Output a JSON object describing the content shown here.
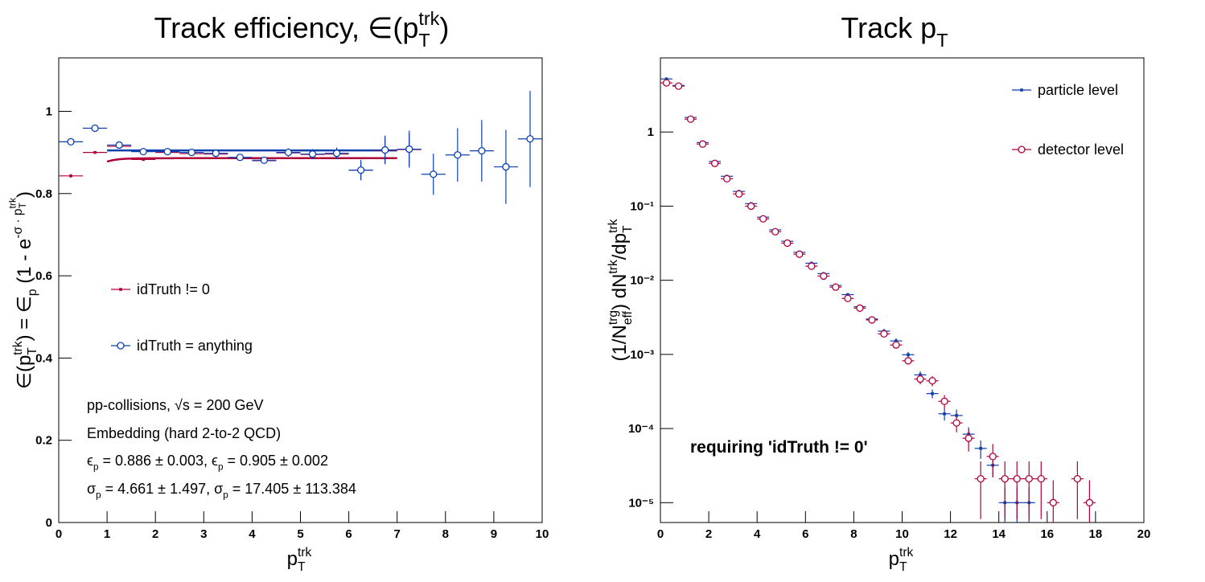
{
  "chart_data": [
    {
      "type": "errorbar",
      "title": [
        {
          "t": "Track efficiency, ∈(p"
        },
        {
          "sup": "trk",
          "sub": "T"
        },
        {
          "t": ")"
        }
      ],
      "x_label": [
        {
          "t": "p"
        },
        {
          "sup": "trk",
          "sub": "T"
        }
      ],
      "y_label": [
        {
          "t": "∈(p"
        },
        {
          "sup": "trk",
          "sub": "T"
        },
        {
          "t": ") = ∈"
        },
        {
          "sub": "p"
        },
        {
          "t": " (1 - e"
        },
        {
          "sup": "-σ · p"
        },
        {
          "hisup": "trk",
          "hisub": "T"
        },
        {
          "t": ")"
        }
      ],
      "xlim": [
        0,
        10
      ],
      "ylim": [
        0,
        1.13
      ],
      "xticks": [
        0,
        1,
        2,
        3,
        4,
        5,
        6,
        7,
        8,
        9,
        10
      ],
      "yticks": [
        0,
        0.2,
        0.4,
        0.6,
        0.8,
        1
      ],
      "xerr": 0.25,
      "series": [
        {
          "name": "idTruth != 0",
          "color": "#b0003a",
          "marker": "square",
          "x": [
            0.25,
            0.75,
            1.25,
            1.75,
            2.25,
            2.75,
            3.25,
            3.75,
            4.25,
            4.75,
            5.25,
            5.75,
            6.25,
            6.75,
            7.25
          ],
          "values": [
            0.843,
            0.9,
            0.915,
            0.883,
            0.9,
            0.897,
            0.896,
            0.887,
            0.88,
            0.899,
            0.895,
            0.896,
            0.857,
            0.905,
            0.907
          ],
          "errors": [
            0.004,
            0.003,
            0.003,
            0.003,
            0.004,
            0.004,
            0.005,
            0.006,
            0.007,
            0.008,
            0.01,
            0.012,
            0.02,
            0.03,
            0.04
          ],
          "fit": {
            "epsilon": 0.886,
            "sigma": 4.661,
            "xrange": [
              1,
              7
            ]
          }
        },
        {
          "name": "idTruth = anything",
          "color": "#0b3fae",
          "marker": "open-circle",
          "x": [
            0.25,
            0.75,
            1.25,
            1.75,
            2.25,
            2.75,
            3.25,
            3.75,
            4.25,
            4.75,
            5.25,
            5.75,
            6.25,
            6.75,
            7.25,
            7.75,
            8.25,
            8.75,
            9.25,
            9.75
          ],
          "values": [
            0.926,
            0.959,
            0.918,
            0.902,
            0.902,
            0.9,
            0.898,
            0.888,
            0.881,
            0.9,
            0.896,
            0.898,
            0.857,
            0.906,
            0.908,
            0.847,
            0.894,
            0.904,
            0.865,
            0.933
          ],
          "errors": [
            0.005,
            0.004,
            0.004,
            0.004,
            0.005,
            0.005,
            0.006,
            0.007,
            0.008,
            0.01,
            0.012,
            0.014,
            0.025,
            0.035,
            0.045,
            0.05,
            0.065,
            0.075,
            0.09,
            0.117
          ],
          "fit": {
            "epsilon": 0.905,
            "sigma": 17.405,
            "xrange": [
              1,
              7
            ]
          }
        }
      ],
      "annotations": [
        [
          {
            "t": "pp-collisions, √s = 200 GeV"
          }
        ],
        [
          {
            "t": "Embedding (hard 2-to-2 QCD)"
          }
        ],
        [
          {
            "t": "ϵ",
            "color": "#cc0044"
          },
          {
            "sub": "p",
            "color": "#cc0044"
          },
          {
            "t": " = 0.886 ± 0.003",
            "color": "#cc0044"
          },
          {
            "t": ", "
          },
          {
            "t": "ϵ",
            "color": "#0033cc"
          },
          {
            "sub": "p",
            "color": "#0033cc"
          },
          {
            "t": " = 0.905 ± 0.002",
            "color": "#0033cc"
          }
        ],
        [
          {
            "t": "σ",
            "color": "#cc0044"
          },
          {
            "sub": "p",
            "color": "#cc0044"
          },
          {
            "t": " = 4.661 ± 1.497",
            "color": "#cc0044"
          },
          {
            "t": ", "
          },
          {
            "t": "σ",
            "color": "#0033cc"
          },
          {
            "sub": "p",
            "color": "#0033cc"
          },
          {
            "t": " = 17.405 ± 113.384",
            "color": "#0033cc"
          }
        ]
      ]
    },
    {
      "type": "errorbar",
      "log_y": true,
      "title": [
        {
          "t": "Track p"
        },
        {
          "sub": "T"
        }
      ],
      "x_label": [
        {
          "t": "p"
        },
        {
          "sup": "trk",
          "sub": "T"
        }
      ],
      "y_label": [
        {
          "t": "(1/N"
        },
        {
          "sup": "trg",
          "sub": "eff"
        },
        {
          "t": ") dN"
        },
        {
          "sup": "trk"
        },
        {
          "t": "/dp"
        },
        {
          "sup": "trk",
          "sub": "T"
        }
      ],
      "xlim": [
        0,
        20
      ],
      "ylim": [
        5.4e-06,
        10
      ],
      "xticks": [
        0,
        2,
        4,
        6,
        8,
        10,
        12,
        14,
        16,
        18,
        20
      ],
      "yticks": [
        {
          "value": 1e-05,
          "label": "10⁻⁵"
        },
        {
          "value": 0.0001,
          "label": "10⁻⁴"
        },
        {
          "value": 0.001,
          "label": "10⁻³"
        },
        {
          "value": 0.01,
          "label": "10⁻²"
        },
        {
          "value": 0.1,
          "label": "10⁻¹"
        },
        1
      ],
      "xerr": 0.25,
      "series": [
        {
          "name": "particle level",
          "color": "#0b3fae",
          "marker": "dot",
          "x": [
            0.25,
            0.75,
            1.25,
            1.75,
            2.25,
            2.75,
            3.25,
            3.75,
            4.25,
            4.75,
            5.25,
            5.75,
            6.25,
            6.75,
            7.25,
            7.75,
            8.25,
            8.75,
            9.25,
            9.75,
            10.25,
            10.75,
            11.25,
            11.75,
            12.25,
            12.75,
            13.25,
            13.75,
            14.25,
            14.75,
            15.25
          ],
          "values": [
            5.2,
            4.25,
            1.57,
            0.72,
            0.4,
            0.253,
            0.158,
            0.108,
            0.071,
            0.0478,
            0.0336,
            0.0238,
            0.017,
            0.0123,
            0.0085,
            0.0064,
            0.0044,
            0.003,
            0.00206,
            0.00152,
            0.00099,
            0.00053,
            0.000296,
            0.000158,
            0.00015,
            8.4e-05,
            5.4e-05,
            3.2e-05,
            1e-05,
            1e-05,
            1e-05
          ],
          "errors": [
            0.08,
            0.07,
            0.03,
            0.015,
            0.009,
            0.006,
            0.004,
            0.003,
            0.002,
            0.0015,
            0.0011,
            0.0009,
            0.0007,
            0.0005,
            0.0004,
            0.0003,
            0.00025,
            0.0002,
            0.00015,
            0.00012,
            9e-05,
            6e-05,
            4e-05,
            3e-05,
            3e-05,
            2e-05,
            1.5e-05,
            1e-05,
            6e-06,
            6e-06,
            6e-06
          ]
        },
        {
          "name": "detector level",
          "color": "#b0003a",
          "marker": "open-circle",
          "x": [
            0.25,
            0.75,
            1.25,
            1.75,
            2.25,
            2.75,
            3.25,
            3.75,
            4.25,
            4.75,
            5.25,
            5.75,
            6.25,
            6.75,
            7.25,
            7.75,
            8.25,
            8.75,
            9.25,
            9.75,
            10.25,
            10.75,
            11.25,
            11.75,
            12.25,
            12.75,
            13.25,
            13.75,
            14.25,
            14.75,
            15.25,
            15.75,
            16.25,
            16.75,
            17.25,
            17.75
          ],
          "values": [
            4.6,
            4.16,
            1.49,
            0.688,
            0.377,
            0.234,
            0.146,
            0.1,
            0.0674,
            0.0452,
            0.0317,
            0.0225,
            0.0155,
            0.0114,
            0.00809,
            0.00569,
            0.00421,
            0.00292,
            0.00189,
            0.00134,
            0.00082,
            0.000465,
            0.00044,
            0.000233,
            0.000119,
            7.4e-05,
            2.1e-05,
            4.2e-05,
            2.1e-05,
            2.1e-05,
            2.1e-05,
            2.1e-05,
            1e-05,
            null,
            2.1e-05,
            1e-05
          ],
          "errors": [
            0.08,
            0.07,
            0.03,
            0.015,
            0.009,
            0.006,
            0.004,
            0.003,
            0.002,
            0.0015,
            0.0011,
            0.0009,
            0.0007,
            0.0005,
            0.0004,
            0.0003,
            0.00025,
            0.0002,
            0.00015,
            0.00012,
            9e-05,
            7e-05,
            7e-05,
            5e-05,
            3e-05,
            2.5e-05,
            1.5e-05,
            2e-05,
            1.5e-05,
            1.5e-05,
            1.5e-05,
            1.5e-05,
            1e-05,
            null,
            1.5e-05,
            1e-05
          ]
        }
      ],
      "annotations": [
        [
          {
            "t": "requiring 'idTruth != 0'",
            "bold": true
          }
        ]
      ]
    }
  ]
}
